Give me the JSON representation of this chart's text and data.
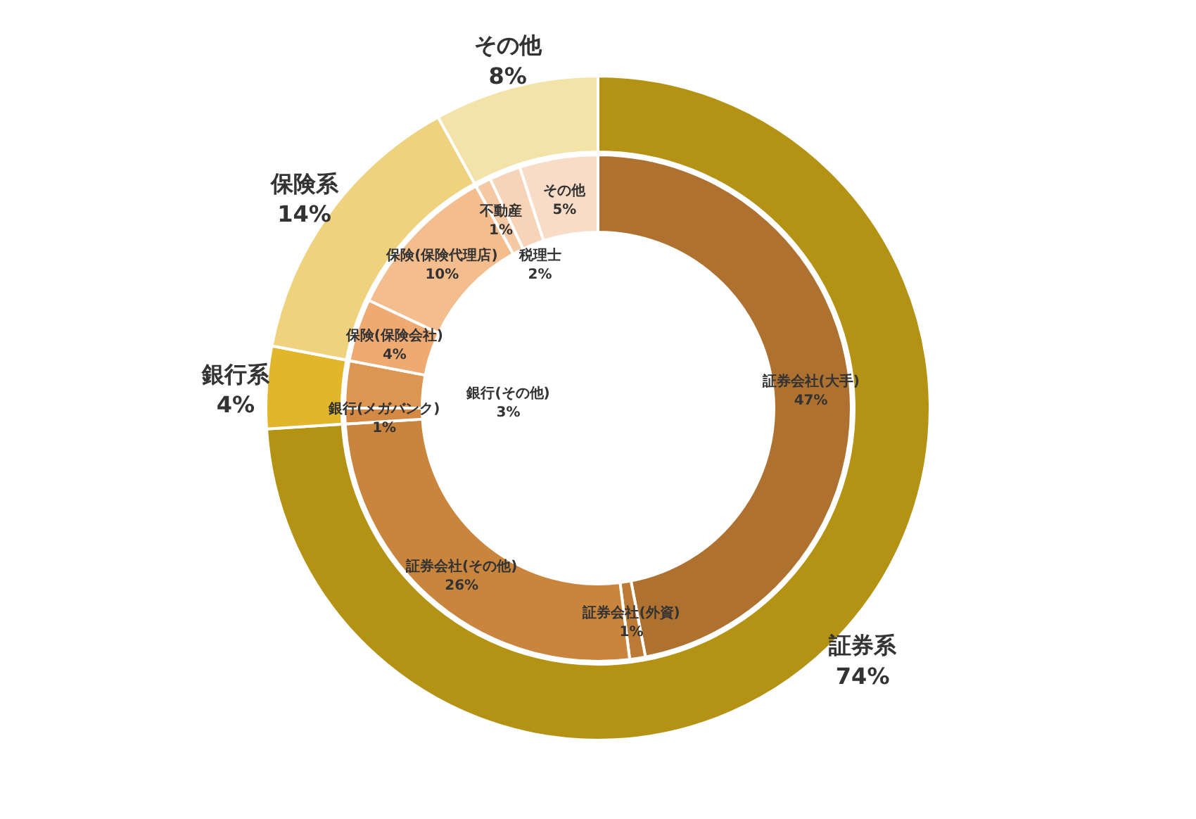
{
  "chart_data": [
    {
      "type": "donut",
      "categories": [
        "証券系",
        "銀行系",
        "保険系",
        "その他"
      ],
      "values": [
        74,
        4,
        14,
        8
      ],
      "colors": [
        "#b39214",
        "#e2b62b",
        "#efd27e",
        "#f3e3a8"
      ],
      "value_labels": [
        "74%",
        "4%",
        "14%",
        "8%"
      ]
    },
    {
      "type": "donut",
      "categories": [
        "証券会社(大手)",
        "証券会社(外資)",
        "証券会社(その他)",
        "銀行(メガバンク)",
        "銀行(その他)",
        "保険(保険会社)",
        "保険(保険代理店)",
        "不動産",
        "税理士",
        "その他"
      ],
      "values": [
        47,
        1,
        26,
        1,
        3,
        4,
        10,
        1,
        2,
        5
      ],
      "colors": [
        "#ae7130",
        "#bd7a34",
        "#c9853d",
        "#d48a45",
        "#dd9552",
        "#efaa72",
        "#f3bd8d",
        "#f5c9a3",
        "#f7d4b8",
        "#f9dcc8"
      ],
      "value_labels": [
        "47%",
        "1%",
        "26%",
        "1%",
        "3%",
        "4%",
        "10%",
        "1%",
        "2%",
        "5%"
      ]
    }
  ]
}
